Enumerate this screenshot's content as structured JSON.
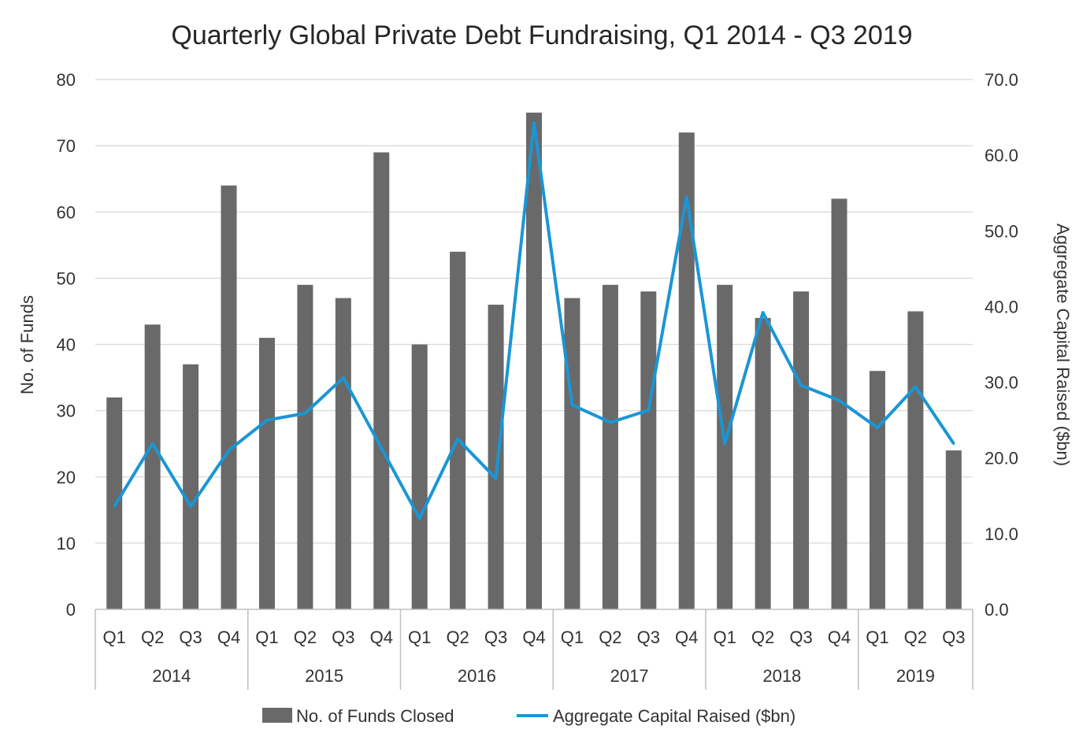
{
  "chart_data": {
    "type": "bar+line",
    "title": "Quarterly Global Private Debt Fundraising, Q1 2014 - Q3 2019",
    "ylabel_left": "No. of Funds",
    "ylabel_right": "Aggregate Capital Raised ($bn)",
    "ylim_left": [
      0,
      80
    ],
    "ylim_right": [
      0,
      70
    ],
    "yticks_left": [
      "0",
      "10",
      "20",
      "30",
      "40",
      "50",
      "60",
      "70",
      "80"
    ],
    "yticks_right": [
      "0.0",
      "10.0",
      "20.0",
      "30.0",
      "40.0",
      "50.0",
      "60.0",
      "70.0"
    ],
    "grid": true,
    "legend_position": "bottom",
    "categories": [
      {
        "quarter": "Q1",
        "year": "2014"
      },
      {
        "quarter": "Q2",
        "year": "2014"
      },
      {
        "quarter": "Q3",
        "year": "2014"
      },
      {
        "quarter": "Q4",
        "year": "2014"
      },
      {
        "quarter": "Q1",
        "year": "2015"
      },
      {
        "quarter": "Q2",
        "year": "2015"
      },
      {
        "quarter": "Q3",
        "year": "2015"
      },
      {
        "quarter": "Q4",
        "year": "2015"
      },
      {
        "quarter": "Q1",
        "year": "2016"
      },
      {
        "quarter": "Q2",
        "year": "2016"
      },
      {
        "quarter": "Q3",
        "year": "2016"
      },
      {
        "quarter": "Q4",
        "year": "2016"
      },
      {
        "quarter": "Q1",
        "year": "2017"
      },
      {
        "quarter": "Q2",
        "year": "2017"
      },
      {
        "quarter": "Q3",
        "year": "2017"
      },
      {
        "quarter": "Q4",
        "year": "2017"
      },
      {
        "quarter": "Q1",
        "year": "2018"
      },
      {
        "quarter": "Q2",
        "year": "2018"
      },
      {
        "quarter": "Q3",
        "year": "2018"
      },
      {
        "quarter": "Q4",
        "year": "2018"
      },
      {
        "quarter": "Q1",
        "year": "2019"
      },
      {
        "quarter": "Q2",
        "year": "2019"
      },
      {
        "quarter": "Q3",
        "year": "2019"
      }
    ],
    "years": [
      "2014",
      "2015",
      "2016",
      "2017",
      "2018",
      "2019"
    ],
    "series": [
      {
        "name": "No. of Funds Closed",
        "type": "bar",
        "axis": "left",
        "color": "#696969",
        "values": [
          32,
          43,
          37,
          64,
          41,
          49,
          47,
          69,
          40,
          54,
          46,
          75,
          47,
          49,
          48,
          72,
          49,
          44,
          48,
          62,
          36,
          45,
          24
        ]
      },
      {
        "name": "Aggregate Capital Raised ($bn)",
        "type": "line",
        "axis": "right",
        "color": "#1a96d4",
        "values": [
          13.6,
          21.9,
          13.6,
          21.0,
          25.0,
          25.9,
          30.6,
          21.3,
          12.0,
          22.5,
          17.3,
          64.3,
          27.0,
          24.7,
          26.3,
          54.5,
          21.9,
          39.2,
          29.6,
          27.6,
          24.0,
          29.4,
          21.9
        ]
      }
    ]
  }
}
